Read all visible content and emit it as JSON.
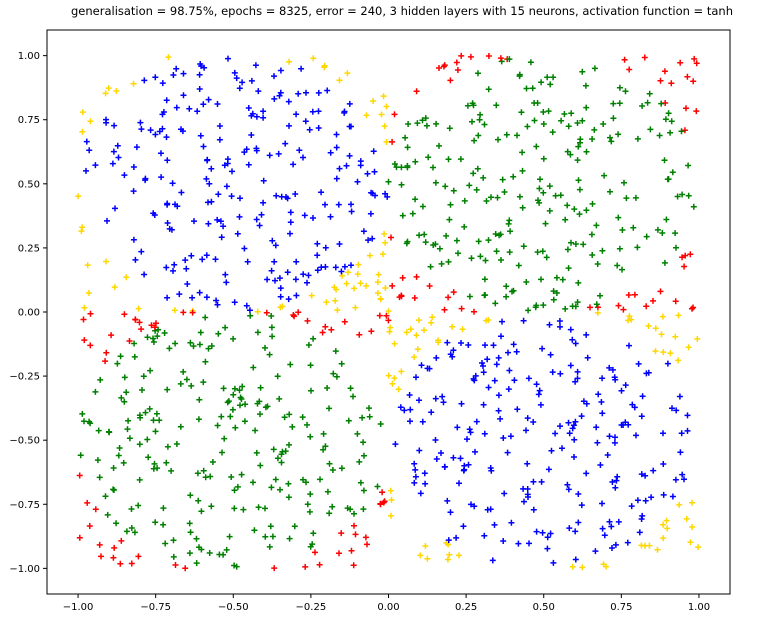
{
  "chart_data": {
    "type": "scatter",
    "title": "generalisation = 98.75%, epochs = 8325, error = 240, 3 hidden layers with 15 neurons, activation function = tanh",
    "xlabel": "",
    "ylabel": "",
    "xlim": [
      -1.1,
      1.1
    ],
    "ylim": [
      -1.1,
      1.1
    ],
    "grid": false,
    "legend": "none",
    "marker": "+",
    "x_ticks": [
      "−1.00",
      "−0.75",
      "−0.50",
      "−0.25",
      "0.00",
      "0.25",
      "0.50",
      "0.75",
      "1.00"
    ],
    "x_tick_values": [
      -1.0,
      -0.75,
      -0.5,
      -0.25,
      0.0,
      0.25,
      0.5,
      0.75,
      1.0
    ],
    "y_ticks": [
      "1.00",
      "0.75",
      "0.50",
      "0.25",
      "0.00",
      "−0.25",
      "−0.50",
      "−0.75",
      "−1.00"
    ],
    "y_tick_values": [
      1.0,
      0.75,
      0.5,
      0.25,
      0.0,
      -0.25,
      -0.5,
      -0.75,
      -1.0
    ],
    "points_per_class_per_quadrant": 150,
    "classes": [
      {
        "color": "#ffd700",
        "region": "outside circle, quadrants II and IV"
      },
      {
        "color": "#0000ff",
        "region": "inside circle r≈0.5, quadrants II and IV"
      },
      {
        "color": "#ff0000",
        "region": "outside circle, quadrants I and III"
      },
      {
        "color": "#008000",
        "region": "inside circle r≈0.5, quadrants I and III"
      }
    ],
    "circle_centers": [
      [
        -0.5,
        0.5
      ],
      [
        0.5,
        0.5
      ],
      [
        -0.5,
        -0.5
      ],
      [
        0.5,
        -0.5
      ]
    ],
    "circle_radius": 0.5
  }
}
